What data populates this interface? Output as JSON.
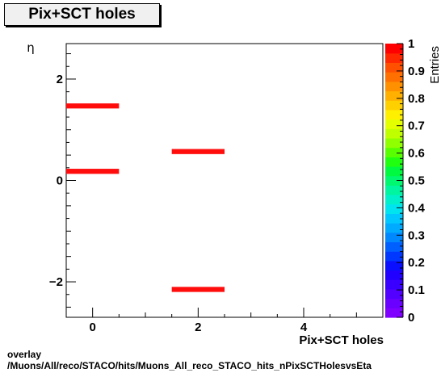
{
  "title": "Pix+SCT holes",
  "chart_data": {
    "type": "heatmap",
    "title": "Pix+SCT holes",
    "xlabel": "Pix+SCT holes",
    "ylabel": "η",
    "xlim": [
      -0.5,
      5.5
    ],
    "ylim": [
      -2.7,
      2.7
    ],
    "x_ticks": [
      0,
      2,
      4
    ],
    "y_ticks": [
      -2,
      0,
      2
    ],
    "colorbar": {
      "label": "Entries",
      "range": [
        0,
        1
      ],
      "ticks": [
        "0",
        "0.1",
        "0.2",
        "0.3",
        "0.4",
        "0.5",
        "0.6",
        "0.7",
        "0.8",
        "0.9",
        "1"
      ]
    },
    "cells": [
      {
        "x": 0,
        "y": 1.47,
        "value": 1
      },
      {
        "x": 0,
        "y": 0.18,
        "value": 1
      },
      {
        "x": 2,
        "y": 0.57,
        "value": 1
      },
      {
        "x": 2,
        "y": -2.15,
        "value": 1
      }
    ]
  },
  "footer": {
    "line1": "overlay",
    "line2": "/Muons/All/reco/STACO/hits/Muons_All_reco_STACO_hits_nPixSCTHolesvsEta"
  }
}
